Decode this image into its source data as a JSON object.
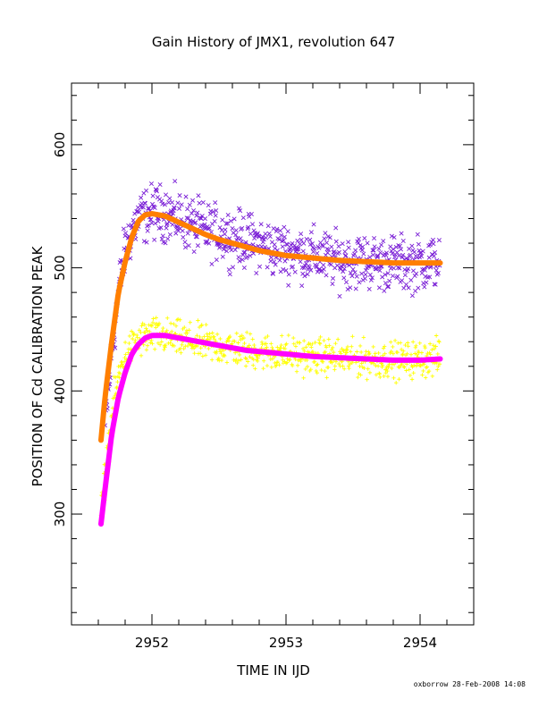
{
  "chart_data": {
    "type": "scatter",
    "title": "Gain History of JMX1, revolution 647",
    "xlabel": "TIME IN IJD",
    "ylabel": "POSITION OF Cd CALIBRATION PEAK",
    "xlim": [
      2951.4,
      2954.4
    ],
    "ylim": [
      210,
      650
    ],
    "xticks": [
      2952,
      2953,
      2954
    ],
    "xtick_labels": [
      "2952",
      "2953",
      "2954"
    ],
    "yticks": [
      300,
      400,
      500,
      600
    ],
    "ytick_labels": [
      "300",
      "400",
      "500",
      "600"
    ],
    "grid": false,
    "series": [
      {
        "marker": "x",
        "color": "#7a1fd6",
        "x": [
          2951.65,
          2951.7,
          2951.75,
          2951.8,
          2951.85,
          2951.9,
          2952.0,
          2952.1,
          2952.2,
          2952.3,
          2952.4,
          2952.5,
          2952.6,
          2952.7,
          2952.8,
          2952.9,
          2953.0,
          2953.1,
          2953.2,
          2953.3,
          2953.4,
          2953.5,
          2953.6,
          2953.7,
          2953.8,
          2953.9,
          2954.0,
          2954.1,
          2954.15
        ],
        "y": [
          370,
          430,
          480,
          515,
          530,
          540,
          545,
          545,
          540,
          535,
          530,
          528,
          525,
          522,
          520,
          515,
          514,
          512,
          510,
          508,
          505,
          506,
          505,
          504,
          505,
          503,
          504,
          505,
          505
        ],
        "spread": 18
      },
      {
        "marker": "+",
        "color": "#ffff00",
        "x": [
          2951.62,
          2951.67,
          2951.72,
          2951.77,
          2951.82,
          2951.87,
          2951.92,
          2952.0,
          2952.1,
          2952.2,
          2952.3,
          2952.4,
          2952.5,
          2952.6,
          2952.7,
          2952.8,
          2952.9,
          2953.0,
          2953.1,
          2953.2,
          2953.3,
          2953.4,
          2953.5,
          2953.6,
          2953.7,
          2953.8,
          2953.9,
          2954.0,
          2954.1,
          2954.15
        ],
        "y": [
          300,
          350,
          395,
          420,
          432,
          438,
          442,
          445,
          444,
          442,
          440,
          438,
          436,
          435,
          433,
          432,
          431,
          430,
          429,
          428,
          428,
          427,
          426,
          426,
          425,
          425,
          425,
          426,
          427,
          427
        ],
        "spread": 12
      },
      {
        "marker": "line",
        "color": "#ff7f00",
        "x": [
          2951.62,
          2951.65,
          2951.7,
          2951.75,
          2951.8,
          2951.85,
          2951.9,
          2951.95,
          2952.0,
          2952.1,
          2952.2,
          2952.3,
          2952.4,
          2952.5,
          2952.6,
          2952.7,
          2952.8,
          2952.9,
          2953.0,
          2953.2,
          2953.4,
          2953.6,
          2953.8,
          2954.0,
          2954.15
        ],
        "y": [
          360,
          395,
          440,
          480,
          505,
          525,
          538,
          543,
          544,
          542,
          537,
          532,
          527,
          523,
          520,
          517,
          514,
          512,
          510,
          508,
          506,
          505,
          504,
          504,
          504
        ]
      },
      {
        "marker": "line",
        "color": "#ff00ff",
        "x": [
          2951.62,
          2951.65,
          2951.7,
          2951.75,
          2951.8,
          2951.85,
          2951.9,
          2951.95,
          2952.0,
          2952.1,
          2952.2,
          2952.3,
          2952.4,
          2952.5,
          2952.6,
          2952.7,
          2952.8,
          2952.9,
          2953.0,
          2953.2,
          2953.4,
          2953.6,
          2953.8,
          2954.0,
          2954.15
        ],
        "y": [
          292,
          320,
          365,
          395,
          415,
          430,
          438,
          443,
          445,
          445,
          443,
          441,
          439,
          437,
          435,
          433,
          432,
          431,
          430,
          428,
          427,
          426,
          425,
          425,
          426
        ]
      }
    ]
  },
  "footer": {
    "text": "oxborrow 28-Feb-2008 14:08"
  }
}
